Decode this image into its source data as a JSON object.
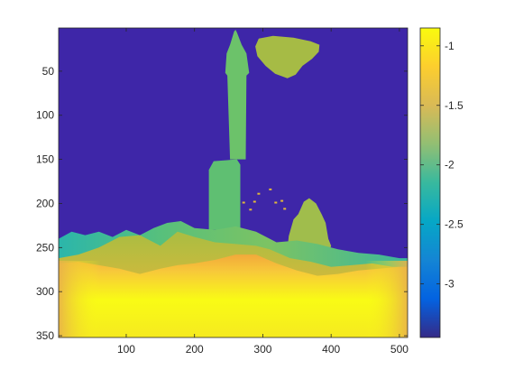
{
  "chart_data": {
    "type": "heatmap",
    "title": "",
    "xlabel": "",
    "ylabel": "",
    "xlim": [
      1,
      512
    ],
    "ylim": [
      1,
      352
    ],
    "y_direction": "reversed",
    "x_ticks": [
      100,
      200,
      300,
      400,
      500
    ],
    "y_ticks": [
      50,
      100,
      150,
      200,
      250,
      300,
      350
    ],
    "x_tick_labels": [
      "100",
      "200",
      "300",
      "400",
      "500"
    ],
    "y_tick_labels": [
      "50",
      "100",
      "150",
      "200",
      "250",
      "300",
      "350"
    ],
    "colorbar": {
      "position": "right",
      "clim": [
        -3.45,
        -0.85
      ],
      "ticks": [
        -1,
        -1.5,
        -2,
        -2.5,
        -3
      ],
      "tick_labels": [
        "-1",
        "-1.5",
        "-2",
        "-2.5",
        "-3"
      ],
      "colormap": "parula"
    },
    "grid": false,
    "regions": [
      {
        "name": "sky",
        "value": -3.4
      },
      {
        "name": "cloud",
        "value": -1.45
      },
      {
        "name": "lighthouse-tower",
        "value": -1.75
      },
      {
        "name": "lighthouse-base",
        "value": -1.78
      },
      {
        "name": "birds",
        "value": -1.5
      },
      {
        "name": "ship",
        "value": -1.6
      },
      {
        "name": "far-waves",
        "value": -2.2
      },
      {
        "name": "middle-waves",
        "value": -1.55
      },
      {
        "name": "near-sea",
        "value": -1.0
      }
    ]
  },
  "colors": {
    "sky": "#3e26a8",
    "cloud": "#a6bb45",
    "tower": "#6cc26a",
    "far_waves": "#33b7a0",
    "mid_waves": "#b9bd3c",
    "near_sea": "#f9fb15",
    "near_sea_edge": "#f7c83a",
    "ship": "#a0bd4c",
    "birds": "#e0b93a"
  }
}
